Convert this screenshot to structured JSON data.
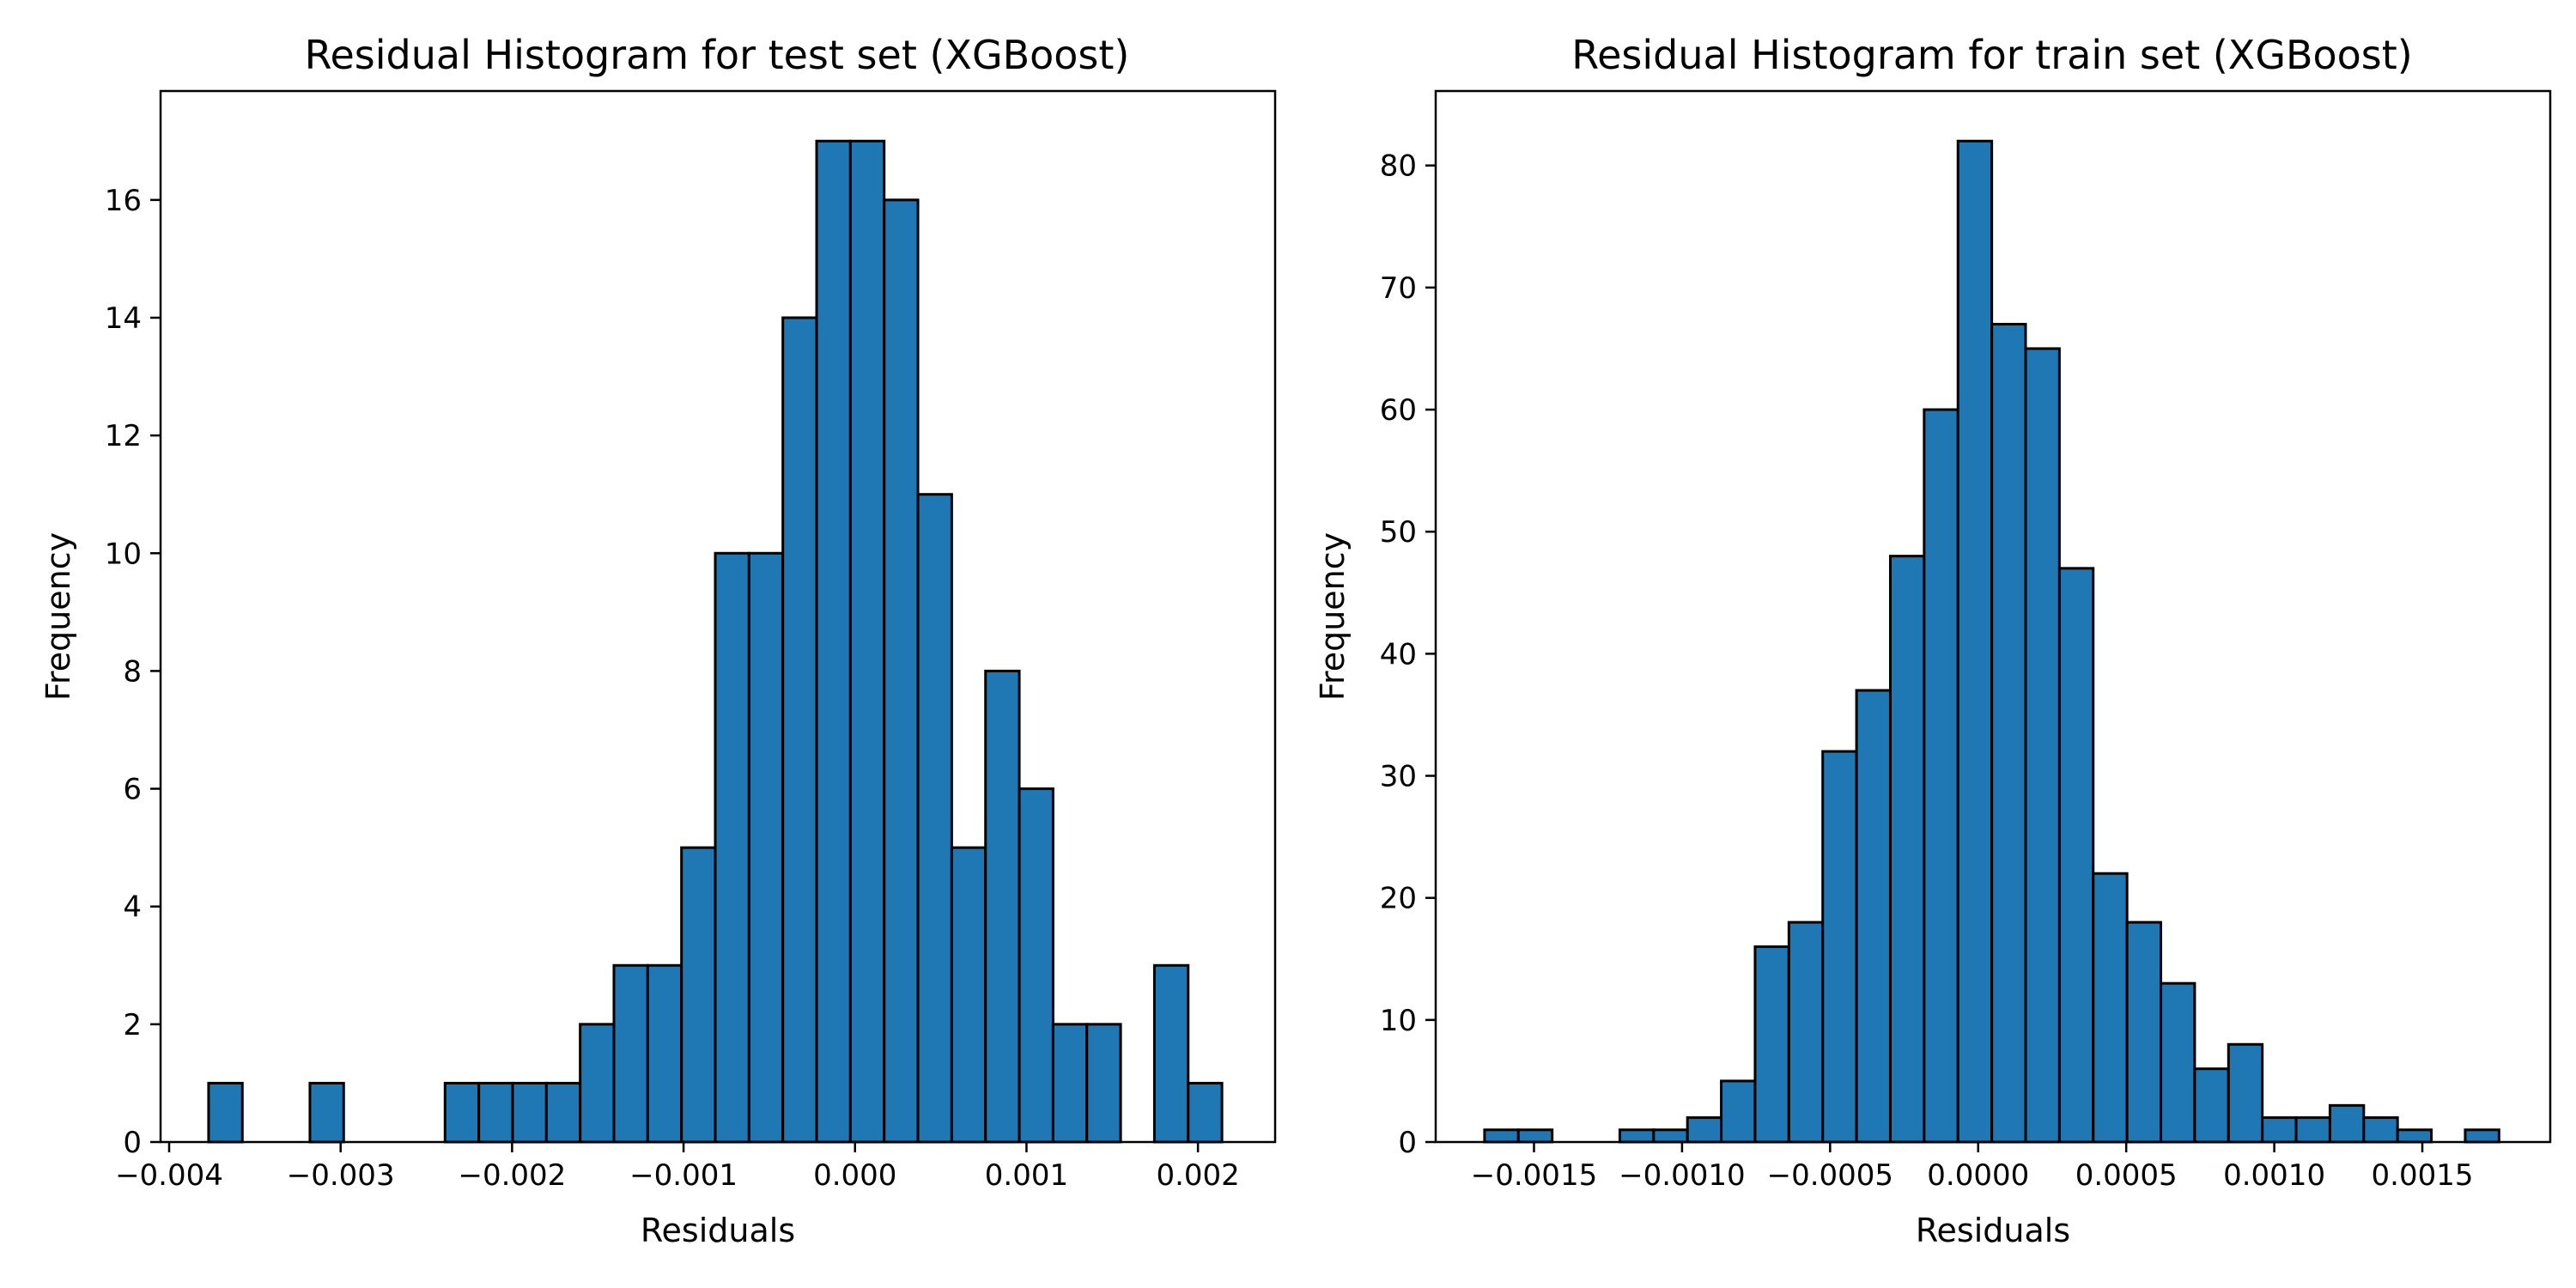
{
  "chart_data": [
    {
      "type": "bar",
      "title": "Residual Histogram for test set (XGBoost)",
      "xlabel": "Residuals",
      "ylabel": "Frequency",
      "xlim": [
        -0.00405,
        0.00245
      ],
      "ylim": [
        0,
        17.85
      ],
      "bin_start": -0.00377,
      "bin_width": 0.000197,
      "values": [
        1,
        0,
        0,
        1,
        0,
        0,
        0,
        1,
        1,
        1,
        1,
        2,
        3,
        3,
        5,
        10,
        10,
        14,
        17,
        17,
        16,
        11,
        5,
        8,
        6,
        2,
        2,
        0,
        3,
        1
      ],
      "xticks": [
        -0.004,
        -0.003,
        -0.002,
        -0.001,
        0.0,
        0.001,
        0.002
      ],
      "xtick_labels": [
        "−0.004",
        "−0.003",
        "−0.002",
        "−0.001",
        "0.000",
        "0.001",
        "0.002"
      ],
      "yticks": [
        0,
        2,
        4,
        6,
        8,
        10,
        12,
        14,
        16
      ],
      "ytick_labels": [
        "0",
        "2",
        "4",
        "6",
        "8",
        "10",
        "12",
        "14",
        "16"
      ],
      "grid": false,
      "color": "#1f77b4",
      "edgecolor": "#000000"
    },
    {
      "type": "bar",
      "title": "Residual Histogram for train set (XGBoost)",
      "xlabel": "Residuals",
      "ylabel": "Frequency",
      "xlim": [
        -0.001832,
        0.001932
      ],
      "ylim": [
        0,
        86.1
      ],
      "bin_start": -0.001667,
      "bin_width": 0.0001142,
      "values": [
        1,
        1,
        0,
        0,
        1,
        1,
        2,
        5,
        16,
        18,
        32,
        37,
        48,
        60,
        82,
        67,
        65,
        47,
        22,
        18,
        13,
        6,
        8,
        2,
        2,
        3,
        2,
        1,
        0,
        1
      ],
      "xticks": [
        -0.0015,
        -0.001,
        -0.0005,
        0.0,
        0.0005,
        0.001,
        0.0015
      ],
      "xtick_labels": [
        "−0.0015",
        "−0.0010",
        "−0.0005",
        "0.0000",
        "0.0005",
        "0.0010",
        "0.0015"
      ],
      "yticks": [
        0,
        10,
        20,
        30,
        40,
        50,
        60,
        70,
        80
      ],
      "ytick_labels": [
        "0",
        "10",
        "20",
        "30",
        "40",
        "50",
        "60",
        "70",
        "80"
      ],
      "grid": false,
      "color": "#1f77b4",
      "edgecolor": "#000000"
    }
  ]
}
